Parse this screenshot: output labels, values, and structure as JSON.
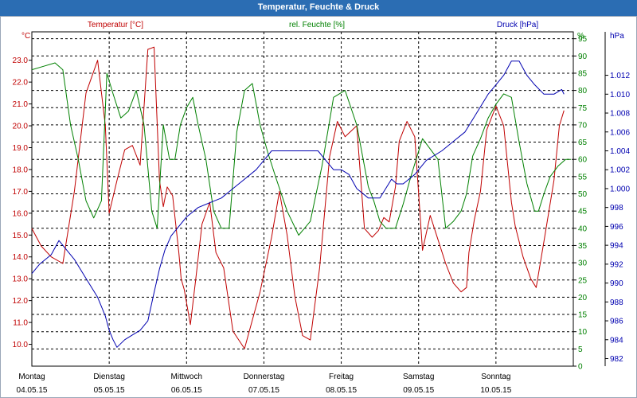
{
  "window": {
    "title": "Temperatur, Feuchte & Druck"
  },
  "colors": {
    "temperature": "#c00000",
    "humidity": "#008000",
    "pressure": "#0000b0",
    "grid": "#000000"
  },
  "chart_data": {
    "type": "line",
    "title": "Temperatur, Feuchte & Druck",
    "grid": true,
    "x_axis": {
      "days": [
        {
          "name": "Montag",
          "date": "04.05.15"
        },
        {
          "name": "Dienstag",
          "date": "05.05.15"
        },
        {
          "name": "Mittwoch",
          "date": "06.05.15"
        },
        {
          "name": "Donnerstag",
          "date": "07.05.15"
        },
        {
          "name": "Freitag",
          "date": "08.05.15"
        },
        {
          "name": "Samstag",
          "date": "09.05.15"
        },
        {
          "name": "Sonntag",
          "date": "10.05.15"
        }
      ],
      "range_days": [
        0,
        7
      ]
    },
    "axes": {
      "temperature": {
        "label": "Temperatur [°C]",
        "unit": "°C",
        "side": "left",
        "ylim": [
          9.0,
          24.3
        ],
        "ticks": [
          "10.0",
          "11.0",
          "12.0",
          "13.0",
          "14.0",
          "15.0",
          "16.0",
          "17.0",
          "18.0",
          "19.0",
          "20.0",
          "21.0",
          "22.0",
          "23.0"
        ]
      },
      "humidity": {
        "label": "rel. Feuchte [%]",
        "unit": "%",
        "side": "right",
        "ylim": [
          0,
          97
        ],
        "ticks": [
          "0",
          "5",
          "10",
          "15",
          "20",
          "25",
          "30",
          "35",
          "40",
          "45",
          "50",
          "55",
          "60",
          "65",
          "70",
          "75",
          "80",
          "85",
          "90",
          "95"
        ]
      },
      "pressure": {
        "label": "Druck [hPa]",
        "unit": "hPa",
        "side": "right",
        "ylim": [
          981.2,
          1016.6
        ],
        "ticks": [
          "982",
          "984",
          "986",
          "988",
          "990",
          "992",
          "994",
          "996",
          "998",
          "1.000",
          "1.002",
          "1.004",
          "1.006",
          "1.008",
          "1.010",
          "1.012"
        ]
      }
    },
    "series": [
      {
        "name": "Temperatur [°C]",
        "axis": "temperature",
        "x": [
          0,
          0.12,
          0.25,
          0.4,
          0.55,
          0.7,
          0.85,
          0.95,
          1.0,
          1.1,
          1.2,
          1.3,
          1.4,
          1.5,
          1.58,
          1.65,
          1.7,
          1.75,
          1.82,
          1.9,
          1.93,
          1.97,
          2.05,
          2.12,
          2.2,
          2.3,
          2.38,
          2.48,
          2.6,
          2.75,
          2.95,
          3.1,
          3.2,
          3.3,
          3.4,
          3.5,
          3.6,
          3.72,
          3.85,
          3.95,
          4.05,
          4.2,
          4.3,
          4.4,
          4.48,
          4.55,
          4.62,
          4.7,
          4.75,
          4.85,
          4.95,
          5.05,
          5.15,
          5.25,
          5.35,
          5.45,
          5.55,
          5.62,
          5.65,
          5.72,
          5.8,
          5.88,
          6.0,
          6.1,
          6.2,
          6.25,
          6.35,
          6.45,
          6.52,
          6.62,
          6.75,
          6.82,
          6.88
        ],
        "values": [
          15.3,
          14.5,
          14.0,
          13.7,
          17.0,
          21.5,
          23.0,
          20.0,
          16.0,
          17.5,
          18.9,
          19.1,
          18.2,
          23.5,
          23.6,
          17.5,
          16.3,
          17.2,
          16.8,
          14.2,
          13.0,
          12.5,
          10.9,
          13.0,
          15.5,
          16.5,
          14.2,
          13.5,
          10.6,
          9.8,
          12.4,
          14.9,
          17.0,
          15.0,
          12.2,
          10.4,
          10.2,
          13.5,
          18.6,
          20.2,
          19.5,
          20.0,
          15.3,
          14.9,
          15.2,
          15.8,
          15.6,
          17.2,
          19.3,
          20.2,
          19.5,
          14.3,
          15.9,
          14.8,
          13.7,
          12.8,
          12.4,
          12.6,
          14.2,
          15.7,
          17.0,
          19.8,
          20.9,
          20.0,
          16.5,
          15.4,
          14.0,
          13.0,
          12.6,
          14.7,
          17.5,
          20.0,
          20.7
        ]
      },
      {
        "name": "rel. Feuchte [%]",
        "axis": "humidity",
        "x": [
          0,
          0.15,
          0.3,
          0.4,
          0.5,
          0.6,
          0.7,
          0.8,
          0.9,
          0.97,
          1.05,
          1.15,
          1.25,
          1.35,
          1.45,
          1.55,
          1.62,
          1.7,
          1.78,
          1.85,
          1.92,
          2.0,
          2.08,
          2.15,
          2.25,
          2.35,
          2.45,
          2.55,
          2.65,
          2.75,
          2.85,
          2.95,
          3.05,
          3.15,
          3.3,
          3.45,
          3.6,
          3.75,
          3.9,
          4.05,
          4.2,
          4.35,
          4.42,
          4.5,
          4.58,
          4.7,
          4.8,
          4.9,
          5.05,
          5.15,
          5.25,
          5.35,
          5.45,
          5.55,
          5.62,
          5.7,
          5.8,
          5.9,
          6.0,
          6.1,
          6.2,
          6.3,
          6.4,
          6.5,
          6.55,
          6.62,
          6.7,
          6.8,
          6.9,
          6.97
        ],
        "values": [
          86,
          87,
          88,
          86,
          70,
          60,
          48,
          43,
          48,
          85,
          79,
          72,
          74,
          80,
          70,
          45,
          40,
          70,
          60,
          60,
          70,
          75,
          78,
          70,
          60,
          45,
          40,
          40,
          68,
          80,
          82,
          70,
          62,
          55,
          45,
          38,
          42,
          58,
          78,
          80,
          70,
          52,
          48,
          42,
          40,
          40,
          47,
          55,
          66,
          63,
          60,
          40,
          42,
          45,
          50,
          61,
          66,
          72,
          76,
          79,
          78,
          65,
          53,
          45,
          45,
          50,
          55,
          58,
          60,
          60
        ]
      },
      {
        "name": "Druck [hPa]",
        "axis": "pressure",
        "x": [
          0,
          0.1,
          0.25,
          0.35,
          0.45,
          0.55,
          0.7,
          0.85,
          0.95,
          1.0,
          1.05,
          1.1,
          1.2,
          1.3,
          1.4,
          1.5,
          1.58,
          1.65,
          1.72,
          1.8,
          1.9,
          2.0,
          2.15,
          2.3,
          2.45,
          2.6,
          2.75,
          2.9,
          3.0,
          3.1,
          3.2,
          3.3,
          3.4,
          3.5,
          3.6,
          3.7,
          3.8,
          3.9,
          4.0,
          4.1,
          4.2,
          4.35,
          4.5,
          4.65,
          4.72,
          4.8,
          4.95,
          5.1,
          5.3,
          5.45,
          5.6,
          5.75,
          5.9,
          6.0,
          6.1,
          6.2,
          6.3,
          6.4,
          6.5,
          6.62,
          6.75,
          6.85,
          6.88
        ],
        "values": [
          991.0,
          992.0,
          993.0,
          994.5,
          993.5,
          992.5,
          990.5,
          988.5,
          986.5,
          985.0,
          984.0,
          983.2,
          984.0,
          984.5,
          985.0,
          986.0,
          989.0,
          991.5,
          993.5,
          995.0,
          996.0,
          997.0,
          998.0,
          998.5,
          999.0,
          1000.0,
          1001.0,
          1002.0,
          1003.0,
          1004.0,
          1004.0,
          1004.0,
          1004.0,
          1004.0,
          1004.0,
          1004.0,
          1003.0,
          1002.0,
          1002.0,
          1001.5,
          1000.0,
          999.0,
          999.0,
          1001.0,
          1000.5,
          1000.5,
          1001.5,
          1003.0,
          1004.0,
          1005.0,
          1006.0,
          1008.0,
          1010.0,
          1011.0,
          1012.0,
          1013.5,
          1013.5,
          1012.0,
          1011.0,
          1010.0,
          1010.0,
          1010.5,
          1010.0
        ]
      }
    ]
  }
}
